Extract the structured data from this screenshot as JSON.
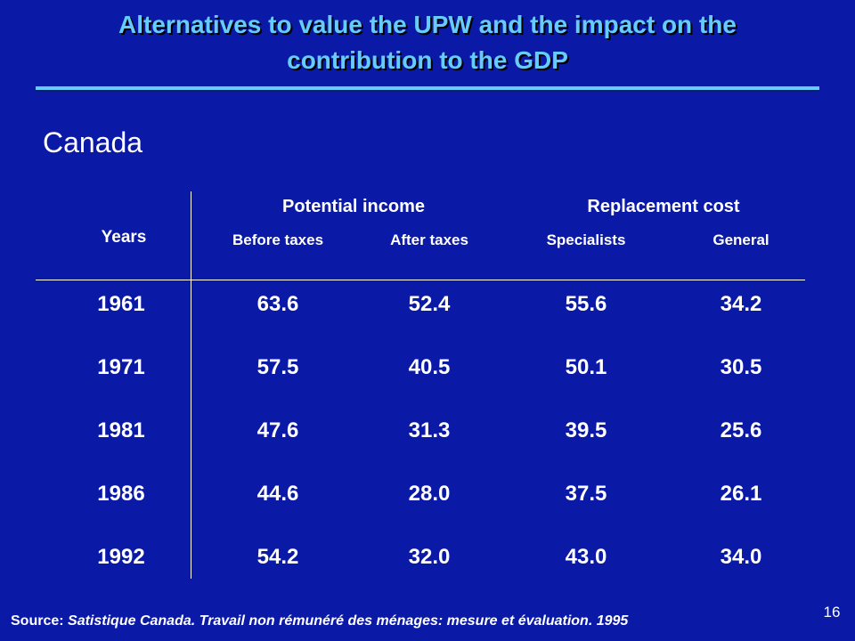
{
  "slide": {
    "title_line1": "Alternatives to value the UPW and the impact on the",
    "title_line2": "contribution to the GDP",
    "subtitle": "Canada",
    "page_number": "16",
    "source_label": "Source:",
    "source_text": "Satistique Canada. Travail non rémunéré des ménages: mesure et évaluation. 1995"
  },
  "colors": {
    "background": "#0a1aa6",
    "title": "#66ccff",
    "text": "#ffffff"
  },
  "table": {
    "year_header": "Years",
    "groups": [
      "Potential income",
      "Replacement cost"
    ],
    "subheaders": [
      "Before taxes",
      "After taxes",
      "Specialists",
      "General"
    ],
    "rows": [
      {
        "year": "1961",
        "values": [
          "63.6",
          "52.4",
          "55.6",
          "34.2"
        ]
      },
      {
        "year": "1971",
        "values": [
          "57.5",
          "40.5",
          "50.1",
          "30.5"
        ]
      },
      {
        "year": "1981",
        "values": [
          "47.6",
          "31.3",
          "39.5",
          "25.6"
        ]
      },
      {
        "year": "1986",
        "values": [
          "44.6",
          "28.0",
          "37.5",
          "26.1"
        ]
      },
      {
        "year": "1992",
        "values": [
          "54.2",
          "32.0",
          "43.0",
          "34.0"
        ]
      }
    ]
  }
}
